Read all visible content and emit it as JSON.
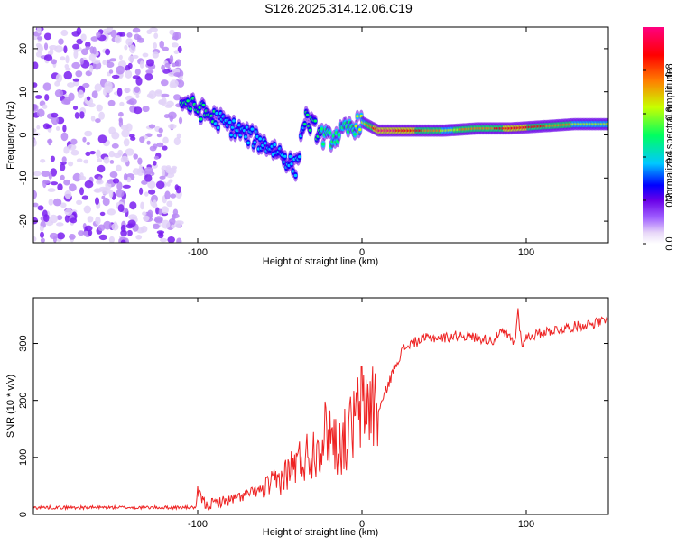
{
  "title": "S126.2025.314.12.06.C19",
  "chart_data": [
    {
      "type": "heatmap",
      "title": "S126.2025.314.12.06.C19",
      "xlabel": "Height of straight line (km)",
      "ylabel": "Frequency (Hz)",
      "xlim": [
        -200,
        150
      ],
      "ylim": [
        -25,
        25
      ],
      "xticks": [
        -100,
        0,
        100
      ],
      "yticks": [
        -20,
        -10,
        0,
        10,
        20
      ],
      "colorbar": {
        "label": "Normalized spectral amplitude",
        "range": [
          0,
          1
        ],
        "ticks": [
          0.0,
          0.2,
          0.4,
          0.6,
          0.8
        ],
        "colors": [
          "#e8d8f8",
          "#a060ff",
          "#6a00e8",
          "#0000ff",
          "#00c8ff",
          "#00ff60",
          "#c8ff00",
          "#ff8000",
          "#ff0000",
          "#ff0080"
        ]
      },
      "ridge": {
        "x": [
          -110,
          -100,
          -90,
          -80,
          -70,
          -60,
          -50,
          -40,
          -35,
          -30,
          -25,
          -20,
          -15,
          -10,
          -5,
          0,
          10,
          20,
          30,
          50,
          70,
          90,
          110,
          130,
          150
        ],
        "y": [
          8,
          6,
          4,
          2,
          0,
          -2,
          -4,
          -8,
          4,
          2,
          0,
          -1,
          0,
          1,
          2,
          3,
          1,
          1,
          1,
          1,
          1.5,
          1.5,
          2,
          2.5,
          2.5
        ],
        "amplitude": [
          0.5,
          0.55,
          0.5,
          0.45,
          0.45,
          0.4,
          0.45,
          0.4,
          0.5,
          0.5,
          0.55,
          0.6,
          0.6,
          0.6,
          0.6,
          0.65,
          0.95,
          0.95,
          0.9,
          0.7,
          0.75,
          0.9,
          0.85,
          0.7,
          0.7
        ]
      },
      "noise_region": {
        "x_range": [
          -200,
          -110
        ],
        "y_range": [
          -25,
          25
        ],
        "amplitude": 0.15
      }
    },
    {
      "type": "line",
      "xlabel": "Height of straight line (km)",
      "ylabel": "SNR (10 * v/v)",
      "xlim": [
        -200,
        150
      ],
      "ylim": [
        0,
        380
      ],
      "xticks": [
        -100,
        0,
        100
      ],
      "yticks": [
        0,
        100,
        200,
        300
      ],
      "series": [
        {
          "name": "SNR",
          "color": "#ee2222",
          "x": [
            -200,
            -150,
            -101,
            -100,
            -95,
            -90,
            -80,
            -70,
            -60,
            -50,
            -40,
            -30,
            -25,
            -20,
            -15,
            -10,
            -5,
            0,
            5,
            10,
            15,
            20,
            25,
            30,
            35,
            40,
            50,
            60,
            70,
            80,
            85,
            90,
            93,
            95,
            97,
            100,
            110,
            120,
            130,
            140,
            150
          ],
          "y": [
            12,
            12,
            12,
            40,
            15,
            20,
            25,
            35,
            45,
            60,
            90,
            110,
            130,
            150,
            120,
            130,
            160,
            190,
            200,
            180,
            220,
            260,
            290,
            300,
            305,
            310,
            310,
            315,
            310,
            305,
            320,
            310,
            300,
            360,
            300,
            310,
            320,
            325,
            330,
            335,
            340
          ]
        }
      ]
    }
  ]
}
